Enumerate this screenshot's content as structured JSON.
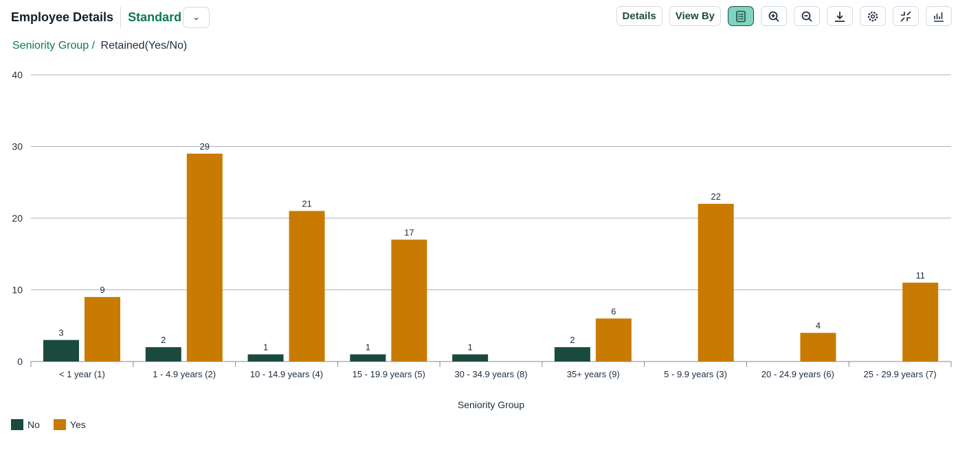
{
  "header": {
    "title": "Employee Details",
    "variant": "Standard"
  },
  "toolbar": {
    "details_label": "Details",
    "viewby_label": "View By",
    "icons": [
      "table-icon",
      "zoom-in-icon",
      "zoom-out-icon",
      "download-icon",
      "settings-icon",
      "exit-fullscreen-icon",
      "chart-type-icon"
    ]
  },
  "breadcrumb": {
    "level1": "Seniority Group /",
    "level2": "Retained(Yes/No)"
  },
  "colors": {
    "No": "#1a4a3e",
    "Yes": "#c87b00",
    "accent": "#0b7a4f"
  },
  "chart_data": {
    "type": "bar",
    "xlabel": "Seniority Group",
    "ylabel": "",
    "ylim": [
      0,
      40
    ],
    "yticks": [
      0,
      10,
      20,
      30,
      40
    ],
    "grid": true,
    "legend": "bottom-left",
    "categories": [
      "< 1 year (1)",
      "1 - 4.9 years (2)",
      "10 - 14.9 years (4)",
      "15 - 19.9 years (5)",
      "30 - 34.9 years (8)",
      "35+ years (9)",
      "5 - 9.9 years (3)",
      "20 - 24.9 years (6)",
      "25 - 29.9 years (7)"
    ],
    "series": [
      {
        "name": "No",
        "values": [
          3,
          2,
          1,
          1,
          1,
          2,
          null,
          null,
          null
        ]
      },
      {
        "name": "Yes",
        "values": [
          9,
          29,
          21,
          17,
          null,
          6,
          22,
          4,
          11
        ]
      }
    ]
  }
}
